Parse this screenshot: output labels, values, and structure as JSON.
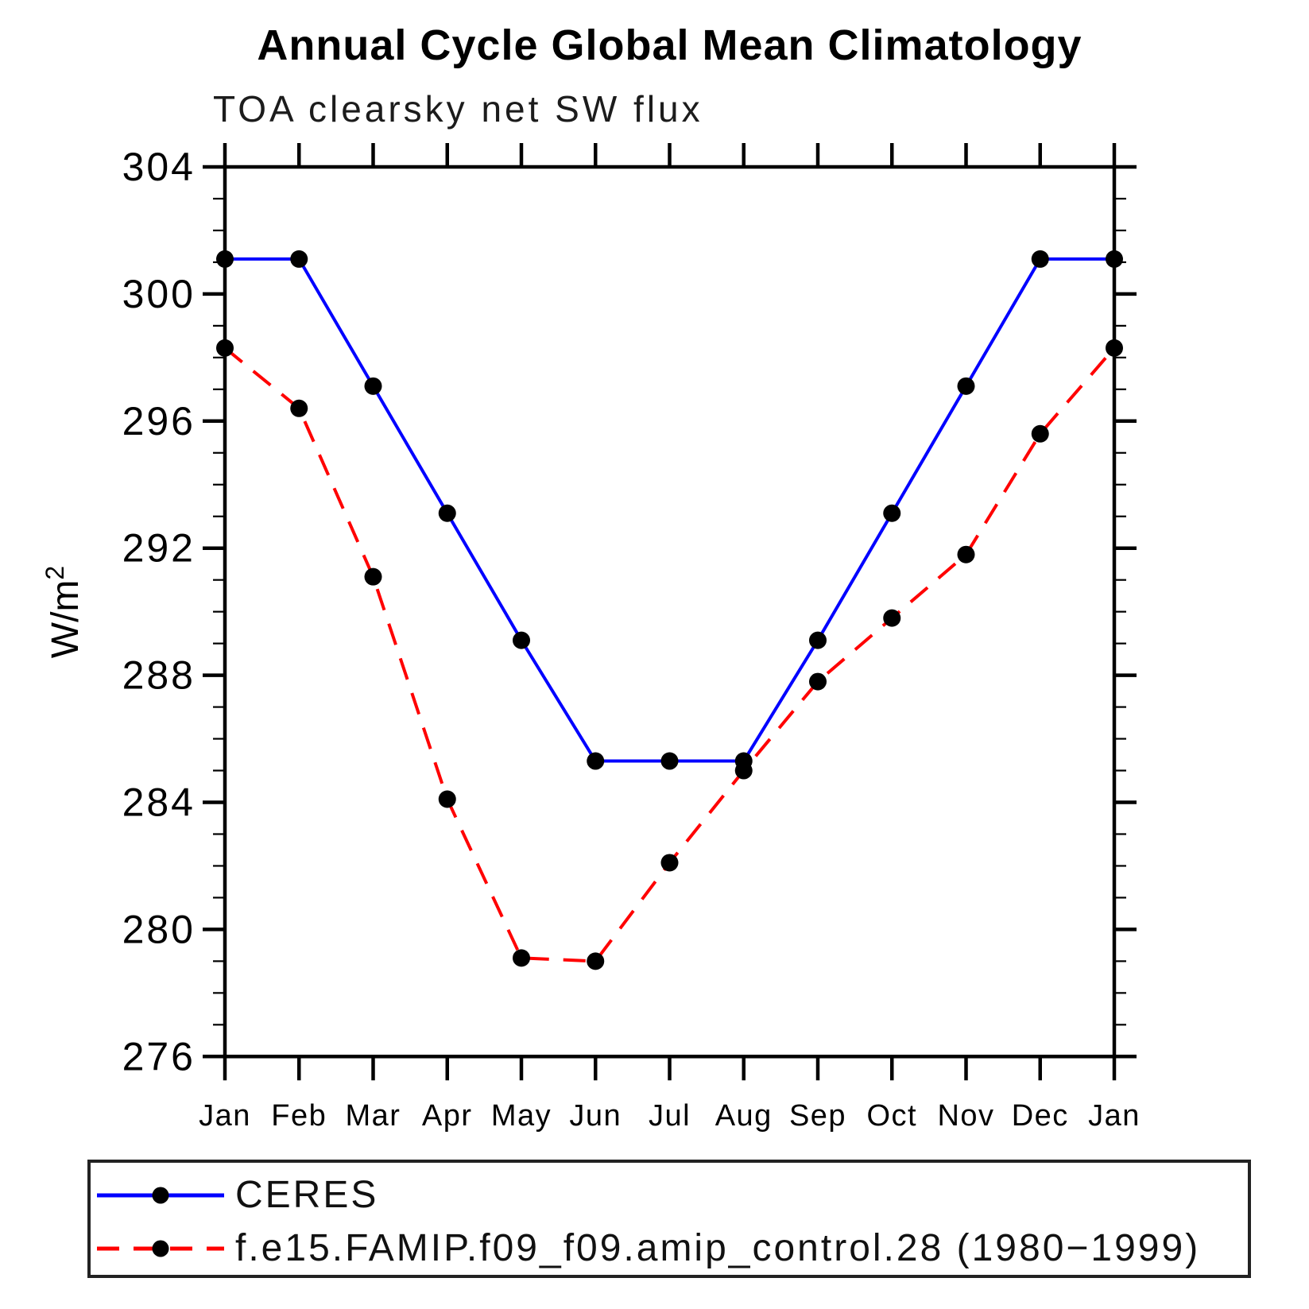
{
  "chart_data": {
    "type": "line",
    "title": "Annual Cycle Global Mean Climatology",
    "subtitle": "TOA clearsky net SW flux",
    "ylabel_base": "W/m",
    "ylabel_exponent": "2",
    "ylabel_full": "W/m²",
    "xlabel": "",
    "categories": [
      "Jan",
      "Feb",
      "Mar",
      "Apr",
      "May",
      "Jun",
      "Jul",
      "Aug",
      "Sep",
      "Oct",
      "Nov",
      "Dec",
      "Jan"
    ],
    "ylim": [
      276,
      304
    ],
    "yticks_major": [
      276,
      280,
      284,
      288,
      292,
      296,
      300,
      304
    ],
    "ytick_minor_interval": 1,
    "grid": "off",
    "legend_position": "bottom-left-box",
    "axis_color": "#000000",
    "text_color": "#000000",
    "series": [
      {
        "name": "CERES",
        "color": "#0000ff",
        "line_style": "solid",
        "marker": "filled-circle",
        "marker_color": "#000000",
        "values": [
          301.1,
          301.1,
          297.1,
          293.1,
          289.1,
          285.3,
          285.3,
          285.3,
          289.1,
          293.1,
          297.1,
          301.1,
          301.1
        ]
      },
      {
        "name": "f.e15.FAMIP.f09_f09.amip_control.28 (1980−1999)",
        "color": "#ff0000",
        "line_style": "dashed",
        "marker": "filled-circle",
        "marker_color": "#000000",
        "values": [
          298.3,
          296.4,
          291.1,
          284.1,
          279.1,
          279.0,
          282.1,
          285.0,
          287.8,
          289.8,
          291.8,
          295.6,
          298.3
        ]
      }
    ]
  }
}
